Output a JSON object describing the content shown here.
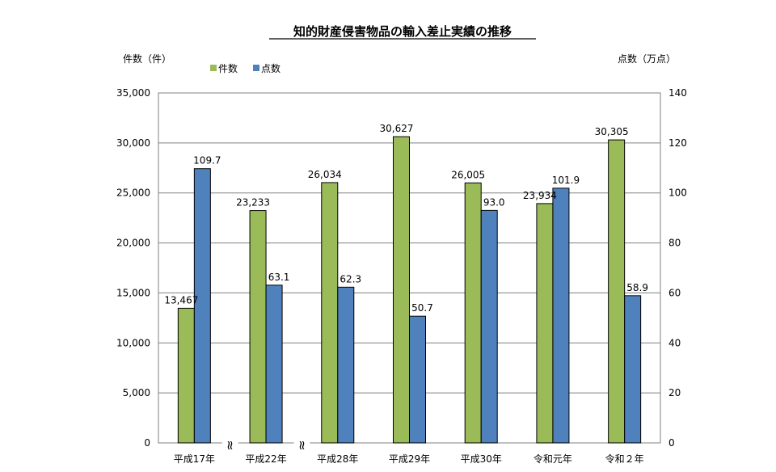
{
  "chart_data": {
    "type": "bar",
    "title": "知的財産侵害物品の輸入差止実績の推移",
    "left_axis_label": "件数（件）",
    "right_axis_label": "点数（万点）",
    "categories": [
      "平成17年",
      "平成22年",
      "平成28年",
      "平成29年",
      "平成30年",
      "令和元年",
      "令和２年"
    ],
    "series": [
      {
        "name": "件数",
        "axis": "left",
        "color": "#9bbb59",
        "values": [
          13467,
          23233,
          26034,
          30627,
          26005,
          23934,
          30305
        ],
        "labels": [
          "13,467",
          "23,233",
          "26,034",
          "30,627",
          "26,005",
          "23,934",
          "30,305"
        ]
      },
      {
        "name": "点数",
        "axis": "right",
        "color": "#4f81bd",
        "values": [
          109.7,
          63.1,
          62.3,
          50.7,
          93.0,
          101.9,
          58.9
        ],
        "labels": [
          "109.7",
          "63.1",
          "62.3",
          "50.7",
          "93.0",
          "101.9",
          "58.9"
        ]
      }
    ],
    "left_axis": {
      "ylim": [
        0,
        35000
      ],
      "ticks": [
        0,
        5000,
        10000,
        15000,
        20000,
        25000,
        30000,
        35000
      ],
      "tick_labels": [
        "0",
        "5,000",
        "10,000",
        "15,000",
        "20,000",
        "25,000",
        "30,000",
        "35,000"
      ]
    },
    "right_axis": {
      "ylim": [
        0,
        140
      ],
      "ticks": [
        0,
        20,
        40,
        60,
        80,
        100,
        120,
        140
      ],
      "tick_labels": [
        "0",
        "20",
        "40",
        "60",
        "80",
        "100",
        "120",
        "140"
      ]
    },
    "axis_breaks_after_categories": [
      0,
      1
    ],
    "axis_break_symbol": "≈",
    "grid": true,
    "legend_position": "top-left"
  }
}
